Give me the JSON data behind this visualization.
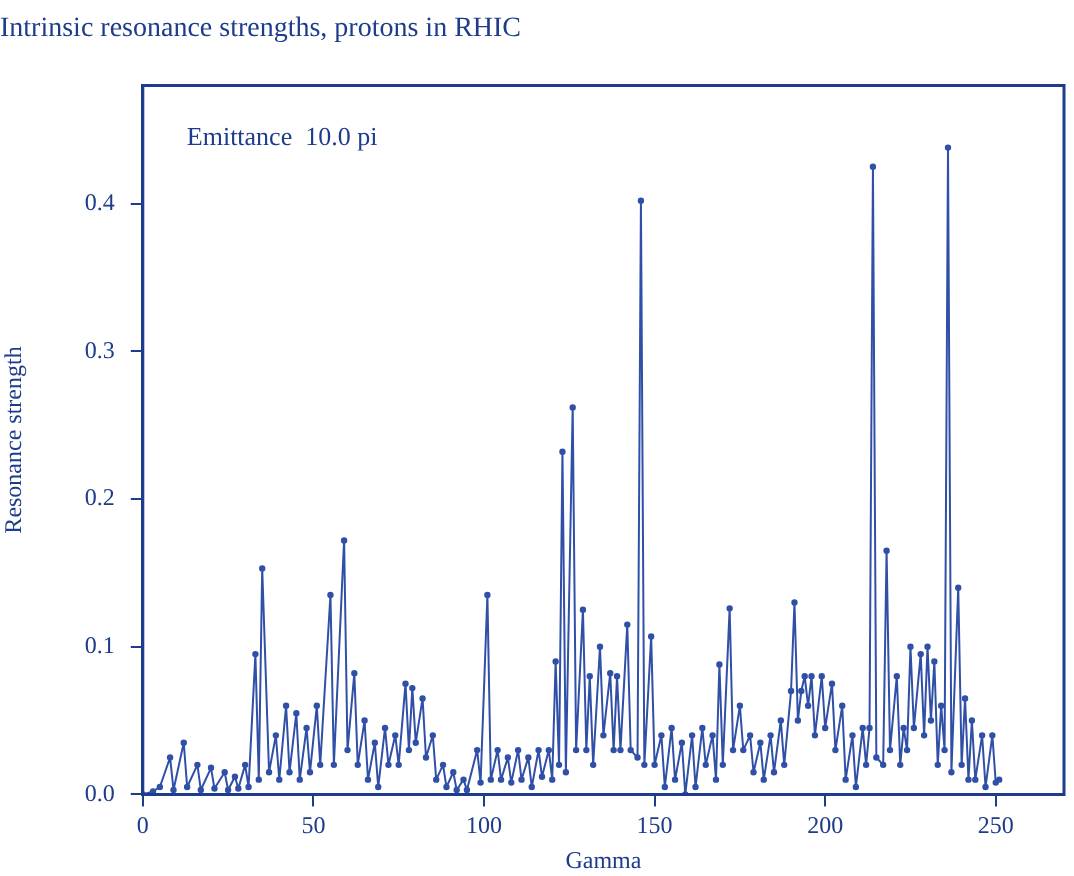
{
  "chart_data": {
    "type": "line",
    "title": "Intrinsic resonance strengths, protons in RHIC",
    "xlabel": "Gamma",
    "ylabel": "Resonance strength",
    "annotations": [
      "Emittance  10.0 pi"
    ],
    "x": [
      0,
      3,
      5,
      8,
      9,
      12,
      13,
      16,
      17,
      20,
      21,
      24,
      25,
      27,
      28,
      30,
      31,
      33,
      34,
      35,
      37,
      39,
      40,
      42,
      43,
      45,
      46,
      48,
      49,
      51,
      52,
      55,
      56,
      59,
      60,
      62,
      63,
      65,
      66,
      68,
      69,
      71,
      72,
      74,
      75,
      77,
      78,
      79,
      80,
      82,
      83,
      85,
      86,
      88,
      89,
      91,
      92,
      94,
      95,
      98,
      99,
      101,
      102,
      104,
      105,
      107,
      108,
      110,
      111,
      113,
      114,
      116,
      117,
      119,
      120,
      121,
      122,
      123,
      124,
      126,
      127,
      129,
      130,
      131,
      132,
      134,
      135,
      137,
      138,
      139,
      140,
      142,
      143,
      145,
      146,
      147,
      149,
      150,
      152,
      153,
      155,
      156,
      158,
      159,
      161,
      162,
      164,
      165,
      167,
      168,
      169,
      170,
      172,
      173,
      175,
      176,
      178,
      179,
      181,
      182,
      184,
      185,
      187,
      188,
      190,
      191,
      192,
      193,
      194,
      195,
      196,
      197,
      199,
      200,
      202,
      203,
      205,
      206,
      208,
      209,
      211,
      212,
      213,
      214,
      215,
      217,
      218,
      219,
      221,
      222,
      223,
      224,
      225,
      226,
      228,
      229,
      230,
      231,
      232,
      233,
      234,
      235,
      236,
      237,
      239,
      240,
      241,
      242,
      243,
      244,
      246,
      247,
      249,
      250,
      251
    ],
    "series": [
      {
        "color": "#3050a8",
        "values": [
          0.0,
          0.002,
          0.005,
          0.025,
          0.003,
          0.035,
          0.005,
          0.02,
          0.003,
          0.018,
          0.004,
          0.015,
          0.003,
          0.012,
          0.004,
          0.02,
          0.005,
          0.095,
          0.01,
          0.153,
          0.015,
          0.04,
          0.01,
          0.06,
          0.015,
          0.055,
          0.01,
          0.045,
          0.015,
          0.06,
          0.02,
          0.135,
          0.02,
          0.172,
          0.03,
          0.082,
          0.02,
          0.05,
          0.01,
          0.035,
          0.005,
          0.045,
          0.02,
          0.04,
          0.02,
          0.075,
          0.03,
          0.072,
          0.035,
          0.065,
          0.025,
          0.04,
          0.01,
          0.02,
          0.005,
          0.015,
          0.003,
          0.01,
          0.003,
          0.03,
          0.008,
          0.135,
          0.01,
          0.03,
          0.01,
          0.025,
          0.008,
          0.03,
          0.01,
          0.025,
          0.005,
          0.03,
          0.012,
          0.03,
          0.01,
          0.09,
          0.02,
          0.232,
          0.015,
          0.262,
          0.03,
          0.125,
          0.03,
          0.08,
          0.02,
          0.1,
          0.04,
          0.082,
          0.03,
          0.08,
          0.03,
          0.115,
          0.03,
          0.025,
          0.402,
          0.02,
          0.107,
          0.02,
          0.04,
          0.005,
          0.045,
          0.01,
          0.035,
          0.0,
          0.04,
          0.005,
          0.045,
          0.02,
          0.04,
          0.01,
          0.088,
          0.02,
          0.126,
          0.03,
          0.06,
          0.03,
          0.04,
          0.015,
          0.035,
          0.01,
          0.04,
          0.015,
          0.05,
          0.02,
          0.07,
          0.13,
          0.05,
          0.07,
          0.08,
          0.06,
          0.08,
          0.04,
          0.08,
          0.045,
          0.075,
          0.03,
          0.06,
          0.01,
          0.04,
          0.005,
          0.045,
          0.02,
          0.045,
          0.425,
          0.025,
          0.02,
          0.165,
          0.03,
          0.08,
          0.02,
          0.045,
          0.03,
          0.1,
          0.045,
          0.095,
          0.04,
          0.1,
          0.05,
          0.09,
          0.02,
          0.06,
          0.03,
          0.438,
          0.015,
          0.14,
          0.02,
          0.065,
          0.01,
          0.05,
          0.01,
          0.04,
          0.005,
          0.04,
          0.008,
          0.01
        ]
      }
    ],
    "xlim": [
      0,
      270
    ],
    "xticks": [
      0,
      50,
      100,
      150,
      200,
      250
    ],
    "ylim": [
      0,
      0.48
    ],
    "yticks": [
      {
        "value": 0,
        "label": "0.0"
      },
      0.1,
      0.2,
      0.3,
      0.4
    ],
    "grid": false,
    "legend": false,
    "marker": "circle",
    "line_style": "solid"
  }
}
